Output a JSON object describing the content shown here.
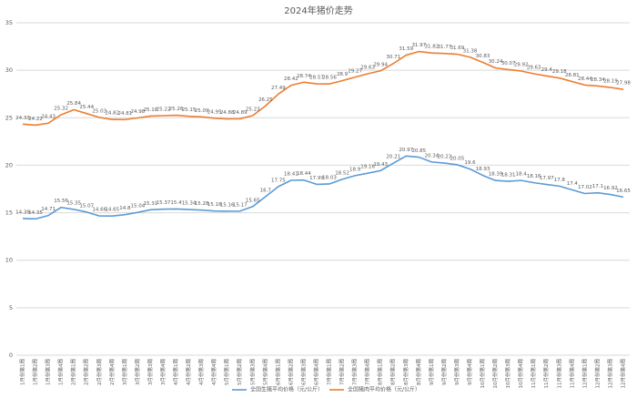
{
  "chart_data": {
    "type": "line",
    "title": "2024年猪价走势",
    "categories": [
      "1月份第1周",
      "1月份第2周",
      "1月份第3周",
      "1月份第4周",
      "2月份第1周",
      "2月份第2周",
      "2月份第3周",
      "2月份第4周",
      "3月份第1周",
      "3月份第2周",
      "3月份第3周",
      "3月份第4周",
      "4月份第1周",
      "4月份第2周",
      "4月份第3周",
      "4月份第4周",
      "5月份第1周",
      "5月份第2周",
      "5月份第3周",
      "5月份第4周",
      "6月份第1周",
      "6月份第2周",
      "6月份第3周",
      "6月份第4周",
      "7月份第1周",
      "7月份第2周",
      "7月份第3周",
      "7月份第4周",
      "8月份第1周",
      "8月份第2周",
      "8月份第3周",
      "8月份第4周",
      "9月份第1周",
      "9月份第2周",
      "9月份第3周",
      "9月份第4周",
      "10月份第1周",
      "10月份第2周",
      "10月份第3周",
      "10月份第4周",
      "11月份第1周",
      "11月份第2周",
      "11月份第3周",
      "11月份第4周",
      "12月份第1周",
      "12月份第2周",
      "12月份第3周",
      "12月份第4周"
    ],
    "series": [
      {
        "name": "全国生猪平均价格（元/公斤）",
        "color": "#5b9bd5",
        "values": [
          14.39,
          14.35,
          14.71,
          15.56,
          15.35,
          15.07,
          14.66,
          14.65,
          14.8,
          15.04,
          15.31,
          15.37,
          15.4,
          15.34,
          15.28,
          15.18,
          15.16,
          15.17,
          15.65,
          16.7,
          17.75,
          18.41,
          18.44,
          17.99,
          18.03,
          18.52,
          18.9,
          19.16,
          19.43,
          20.21,
          20.97,
          20.85,
          20.34,
          20.23,
          20.05,
          19.6,
          18.93,
          18.39,
          18.31,
          18.4,
          18.16,
          17.97,
          17.8,
          17.4,
          17.02,
          17.1,
          16.92,
          16.65
        ]
      },
      {
        "name": "全国猪肉平均价格（元/公斤）",
        "color": "#ed7d31",
        "values": [
          24.33,
          24.22,
          24.43,
          25.32,
          25.84,
          25.44,
          25.03,
          24.82,
          24.81,
          24.98,
          25.18,
          25.22,
          25.26,
          25.15,
          25.09,
          24.95,
          24.88,
          24.89,
          25.23,
          26.25,
          27.49,
          28.42,
          28.74,
          28.57,
          28.56,
          28.9,
          29.27,
          29.63,
          29.94,
          30.71,
          31.59,
          31.97,
          31.82,
          31.77,
          31.69,
          31.38,
          30.83,
          30.24,
          30.07,
          29.92,
          29.63,
          29.4,
          29.18,
          28.81,
          28.44,
          28.34,
          28.19,
          27.98
        ]
      }
    ],
    "ylim": [
      0,
      35
    ],
    "yticks": [
      0,
      5,
      10,
      15,
      20,
      25,
      30,
      35
    ],
    "grid": true,
    "legend": "bottom"
  }
}
